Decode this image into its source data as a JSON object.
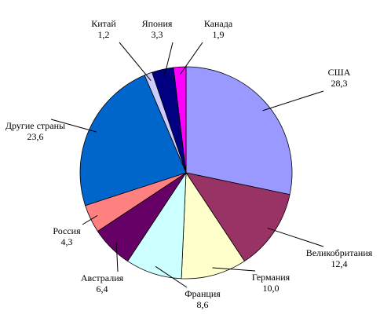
{
  "chart_data": {
    "type": "pie",
    "categories": [
      "США",
      "Великобритания",
      "Германия",
      "Франция",
      "Австралия",
      "Россия",
      "Другие страны",
      "Китай",
      "Япония",
      "Канада"
    ],
    "values": [
      28.3,
      12.4,
      10.0,
      8.6,
      6.4,
      4.3,
      23.6,
      1.2,
      3.3,
      1.9
    ],
    "value_labels": [
      "28,3",
      "12,4",
      "10,0",
      "8,6",
      "6,4",
      "4,3",
      "23,6",
      "1,2",
      "3,3",
      "1,9"
    ],
    "colors": [
      "#9999ff",
      "#993366",
      "#ffffcc",
      "#ccffff",
      "#660066",
      "#ff8080",
      "#0066cc",
      "#ccccff",
      "#000080",
      "#ff00ff"
    ]
  }
}
